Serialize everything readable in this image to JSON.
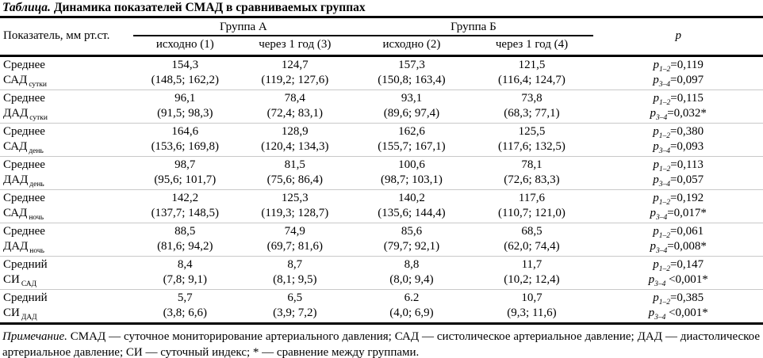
{
  "title": {
    "label": "Таблица.",
    "text": "Динамика показателей СМАД в сравниваемых группах"
  },
  "table": {
    "param_header": "Показатель, мм рт.ст.",
    "group_a": "Группа А",
    "group_b": "Группа Б",
    "p_header": "p",
    "subheaders": [
      "исходно (1)",
      "через 1 год (3)",
      "исходно (2)",
      "через 1 год (4)"
    ],
    "rows": [
      {
        "param_line1": "Среднее",
        "param_base": "САД",
        "param_sub": "сутки",
        "cells": [
          {
            "value": "154,3",
            "ci": "(148,5; 162,2)"
          },
          {
            "value": "124,7",
            "ci": "(119,2; 127,6)"
          },
          {
            "value": "157,3",
            "ci": "(150,8; 163,4)"
          },
          {
            "value": "121,5",
            "ci": "(116,4; 124,7)"
          }
        ],
        "p": [
          {
            "sub": "1–2",
            "rest": "=0,119"
          },
          {
            "sub": "3–4",
            "rest": "=0,097"
          }
        ]
      },
      {
        "param_line1": "Среднее",
        "param_base": "ДАД",
        "param_sub": "сутки",
        "cells": [
          {
            "value": "96,1",
            "ci": "(91,5; 98,3)"
          },
          {
            "value": "78,4",
            "ci": "(72,4; 83,1)"
          },
          {
            "value": "93,1",
            "ci": "(89,6; 97,4)"
          },
          {
            "value": "73,8",
            "ci": "(68,3; 77,1)"
          }
        ],
        "p": [
          {
            "sub": "1–2",
            "rest": "=0,115"
          },
          {
            "sub": "3–4",
            "rest": "=0,032*"
          }
        ]
      },
      {
        "param_line1": "Среднее",
        "param_base": "САД",
        "param_sub": "день",
        "cells": [
          {
            "value": "164,6",
            "ci": "(153,6; 169,8)"
          },
          {
            "value": "128,9",
            "ci": "(120,4; 134,3)"
          },
          {
            "value": "162,6",
            "ci": "(155,7; 167,1)"
          },
          {
            "value": "125,5",
            "ci": "(117,6; 132,5)"
          }
        ],
        "p": [
          {
            "sub": "1–2",
            "rest": "=0,380"
          },
          {
            "sub": "3–4",
            "rest": "=0,093"
          }
        ]
      },
      {
        "param_line1": "Среднее",
        "param_base": "ДАД",
        "param_sub": "день",
        "cells": [
          {
            "value": "98,7",
            "ci": "(95,6; 101,7)"
          },
          {
            "value": "81,5",
            "ci": "(75,6; 86,4)"
          },
          {
            "value": "100,6",
            "ci": "(98,7; 103,1)"
          },
          {
            "value": "78,1",
            "ci": "(72,6; 83,3)"
          }
        ],
        "p": [
          {
            "sub": "1–2",
            "rest": "=0,113"
          },
          {
            "sub": "3–4",
            "rest": "=0,057"
          }
        ]
      },
      {
        "param_line1": "Среднее",
        "param_base": "САД",
        "param_sub": "ночь",
        "cells": [
          {
            "value": "142,2",
            "ci": "(137,7; 148,5)"
          },
          {
            "value": "125,3",
            "ci": "(119,3; 128,7)"
          },
          {
            "value": "140,2",
            "ci": "(135,6; 144,4)"
          },
          {
            "value": "117,6",
            "ci": "(110,7; 121,0)"
          }
        ],
        "p": [
          {
            "sub": "1–2",
            "rest": "=0,192"
          },
          {
            "sub": "3–4",
            "rest": "=0,017*"
          }
        ]
      },
      {
        "param_line1": "Среднее",
        "param_base": "ДАД",
        "param_sub": "ночь",
        "cells": [
          {
            "value": "88,5",
            "ci": "(81,6; 94,2)"
          },
          {
            "value": "74,9",
            "ci": "(69,7; 81,6)"
          },
          {
            "value": "85,6",
            "ci": "(79,7; 92,1)"
          },
          {
            "value": "68,5",
            "ci": "(62,0; 74,4)"
          }
        ],
        "p": [
          {
            "sub": "1–2",
            "rest": "=0,061"
          },
          {
            "sub": "3–4",
            "rest": "=0,008*"
          }
        ]
      },
      {
        "param_line1": "Средний",
        "param_base": "СИ",
        "param_sub": "САД",
        "cells": [
          {
            "value": "8,4",
            "ci": "(7,8; 9,1)"
          },
          {
            "value": "8,7",
            "ci": "(8,1; 9,5)"
          },
          {
            "value": "8,8",
            "ci": "(8,0; 9,4)"
          },
          {
            "value": "11,7",
            "ci": "(10,2; 12,4)"
          }
        ],
        "p": [
          {
            "sub": "1–2",
            "rest": "=0,147"
          },
          {
            "sub": "3–4",
            "rest": " <0,001*"
          }
        ]
      },
      {
        "param_line1": "Средний",
        "param_base": "СИ",
        "param_sub": "ДАД",
        "cells": [
          {
            "value": "5,7",
            "ci": "(3,8; 6,6)"
          },
          {
            "value": "6,5",
            "ci": "(3,9; 7,2)"
          },
          {
            "value": "6.2",
            "ci": "(4,0; 6,9)"
          },
          {
            "value": "10,7",
            "ci": "(9,3; 11,6)"
          }
        ],
        "p": [
          {
            "sub": "1–2",
            "rest": "=0,385"
          },
          {
            "sub": "3–4",
            "rest": " <0,001*"
          }
        ]
      }
    ]
  },
  "footnote": {
    "label": "Примечание.",
    "text": " СМАД — суточное мониторирование артериального давления; САД — систолическое артериальное давление; ДАД — диастолическое артериальное давление; СИ — суточный индекс; * — сравнение между группами."
  }
}
